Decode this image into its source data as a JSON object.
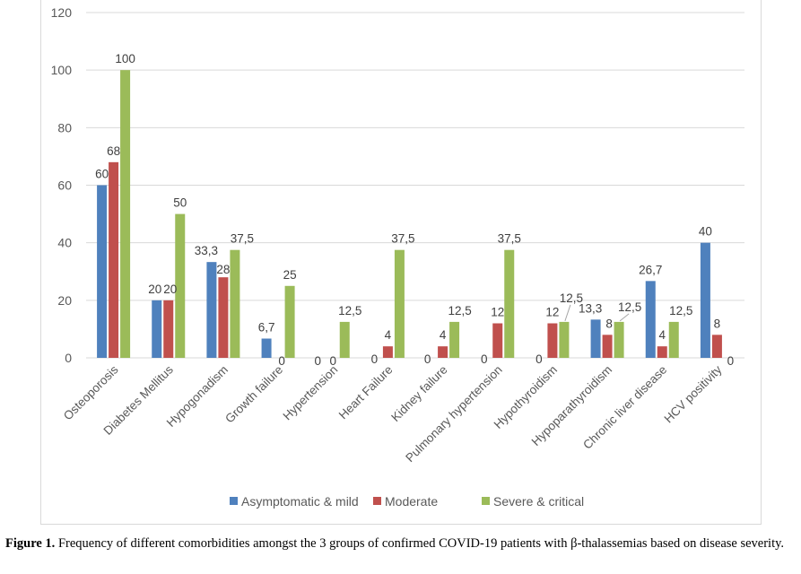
{
  "chart_data": {
    "type": "bar",
    "title": "",
    "xlabel": "",
    "ylabel": "",
    "ylim": [
      0,
      120
    ],
    "yticks": [
      0,
      20,
      40,
      60,
      80,
      100,
      120
    ],
    "grid": true,
    "legend_position": "bottom",
    "categories": [
      "Osteoporosis",
      "Diabetes Mellitus",
      "Hypogonadism",
      "Growth failure",
      "Hypertension",
      "Heart Failure",
      "Kidney failure",
      "Pulmonary hypertension",
      "Hypothyroidism",
      "Hypoparathyroidism",
      "Chronic liver disease",
      "HCV positivity"
    ],
    "series": [
      {
        "name": "Asymptomatic & mild",
        "color": "#4F81BD",
        "values": [
          60,
          20,
          33.3,
          6.7,
          0,
          0,
          0,
          0,
          0,
          13.3,
          26.7,
          40
        ],
        "labels": [
          "60",
          "20",
          "33,3",
          "6,7",
          "0",
          "0",
          "0",
          "0",
          "0",
          "13,3",
          "26,7",
          "40"
        ]
      },
      {
        "name": "Moderate",
        "color": "#C0504D",
        "values": [
          68,
          20,
          28,
          0,
          0,
          4,
          4,
          12,
          12,
          8,
          4,
          8
        ],
        "labels": [
          "68",
          "20",
          "28",
          "0",
          "0",
          "4",
          "4",
          "12",
          "12",
          "8",
          "4",
          "8"
        ]
      },
      {
        "name": "Severe & critical",
        "color": "#9BBB59",
        "values": [
          100,
          50,
          37.5,
          25,
          12.5,
          37.5,
          12.5,
          37.5,
          12.5,
          12.5,
          12.5,
          0
        ],
        "labels": [
          "100",
          "50",
          "37,5",
          "25",
          "12,5",
          "37,5",
          "12,5",
          "37,5",
          "12,5",
          "12,5",
          "12,5",
          "0"
        ]
      }
    ]
  },
  "caption": {
    "label": "Figure 1.",
    "text": " Frequency of different comorbidities amongst the 3 groups of confirmed COVID-19 patients with β-thalassemias based on disease severity."
  }
}
